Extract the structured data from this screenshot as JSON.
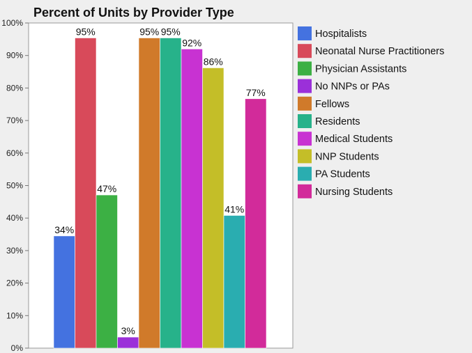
{
  "chart_data": {
    "type": "bar",
    "title": "Percent of Units by Provider Type",
    "xlabel": "",
    "ylabel": "",
    "ylim": [
      0,
      100
    ],
    "yticks": [
      "0%",
      "10%",
      "20%",
      "30%",
      "40%",
      "50%",
      "60%",
      "70%",
      "80%",
      "90%",
      "100%"
    ],
    "grid": false,
    "legend_position": "right",
    "series": [
      {
        "name": "Hospitalists",
        "value": 34.5,
        "label": "34%",
        "color": "#4472E0"
      },
      {
        "name": "Neonatal Nurse Practitioners",
        "value": 95.4,
        "label": "95%",
        "color": "#D84A5A"
      },
      {
        "name": "Physician Assistants",
        "value": 47.1,
        "label": "47%",
        "color": "#3CB044"
      },
      {
        "name": "No NNPs or PAs",
        "value": 3.4,
        "label": "3%",
        "color": "#9B30D9"
      },
      {
        "name": "Fellows",
        "value": 95.4,
        "label": "95%",
        "color": "#D07A2A"
      },
      {
        "name": "Residents",
        "value": 95.4,
        "label": "95%",
        "color": "#27B28A"
      },
      {
        "name": "Medical Students",
        "value": 92.0,
        "label": "92%",
        "color": "#C832D2"
      },
      {
        "name": "NNP Students",
        "value": 86.2,
        "label": "86%",
        "color": "#C4BE28"
      },
      {
        "name": "PA Students",
        "value": 40.8,
        "label": "41%",
        "color": "#2AADB0"
      },
      {
        "name": "Nursing Students",
        "value": 76.7,
        "label": "77%",
        "color": "#D22B9A"
      }
    ]
  }
}
